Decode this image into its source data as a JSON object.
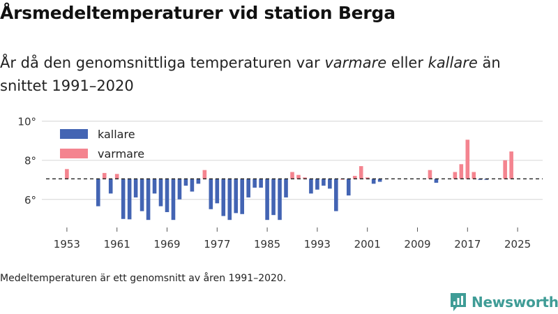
{
  "title": "Årsmedeltemperaturer vid station Berga",
  "subtitle": {
    "prefix": "År då den genomsnittliga temperaturen var ",
    "warm_word": "varmare",
    "middle": " eller ",
    "cold_word": "kallare",
    "suffix": " än snittet 1991–2020"
  },
  "footnote": "Medeltemperaturen är ett genomsnitt av åren 1991–2020.",
  "brand": {
    "name": "Newsworthy",
    "icon": "newsworthy-chart-bubble-icon",
    "color": "#3f9c96"
  },
  "chart_data": {
    "type": "bar",
    "title": "Årsmedeltemperaturer vid station Berga",
    "xlabel": "",
    "ylabel": "",
    "baseline": 7.05,
    "baseline_style": "dashed",
    "ylim": [
      4.6,
      10.2
    ],
    "xlim": [
      1949,
      2029
    ],
    "yticks": [
      6,
      8,
      10
    ],
    "ytick_labels": [
      "6°",
      "8°",
      "10°"
    ],
    "xticks": [
      1953,
      1961,
      1969,
      1977,
      1985,
      1993,
      2001,
      2009,
      2017,
      2025
    ],
    "grid": true,
    "legend": {
      "position": "top-left",
      "entries": [
        {
          "label": "kallare",
          "color": "#4364b3"
        },
        {
          "label": "varmare",
          "color": "#f4848f"
        }
      ]
    },
    "colors": {
      "colder": "#4364b3",
      "warmer": "#f4848f"
    },
    "x": [
      1953,
      1958,
      1959,
      1960,
      1961,
      1962,
      1963,
      1964,
      1965,
      1966,
      1967,
      1968,
      1969,
      1970,
      1971,
      1972,
      1973,
      1974,
      1975,
      1976,
      1977,
      1978,
      1979,
      1980,
      1981,
      1982,
      1983,
      1984,
      1985,
      1986,
      1987,
      1988,
      1989,
      1990,
      1991,
      1992,
      1993,
      1994,
      1995,
      1996,
      1997,
      1998,
      1999,
      2000,
      2001,
      2002,
      2003,
      2011,
      2012,
      2015,
      2016,
      2017,
      2018,
      2019,
      2020,
      2023,
      2024
    ],
    "values": [
      7.55,
      5.65,
      7.35,
      6.3,
      7.3,
      5.0,
      4.98,
      6.1,
      5.4,
      4.95,
      6.3,
      5.65,
      5.35,
      4.95,
      6.0,
      6.7,
      6.4,
      6.8,
      7.5,
      5.5,
      5.8,
      5.15,
      4.95,
      5.3,
      5.25,
      6.1,
      6.6,
      6.6,
      4.95,
      5.2,
      4.95,
      6.1,
      7.4,
      7.25,
      7.12,
      6.3,
      6.5,
      6.7,
      6.55,
      5.4,
      7.05,
      6.2,
      7.2,
      7.7,
      7.12,
      6.8,
      6.9,
      7.5,
      6.85,
      7.4,
      7.8,
      9.05,
      7.4,
      7.0,
      7.0,
      8.0,
      8.45
    ]
  }
}
